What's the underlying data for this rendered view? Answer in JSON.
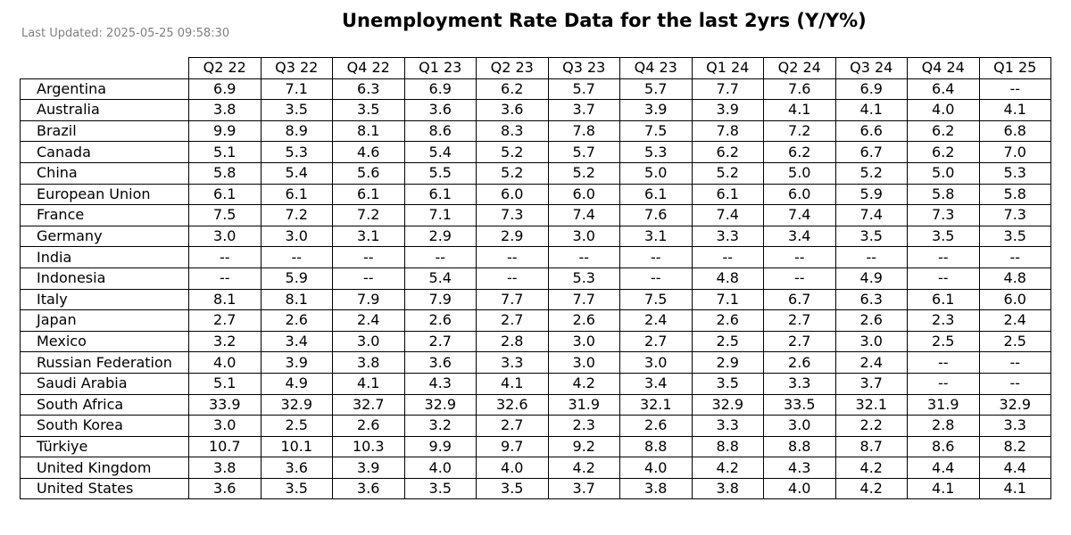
{
  "last_updated": "Last Updated: 2025-05-25 09:58:30",
  "chart_data": {
    "type": "table",
    "title": "Unemployment Rate Data for the last 2yrs (Y/Y%)",
    "columns": [
      "Q2 22",
      "Q3 22",
      "Q4 22",
      "Q1 23",
      "Q2 23",
      "Q3 23",
      "Q4 23",
      "Q1 24",
      "Q2 24",
      "Q3 24",
      "Q4 24",
      "Q1 25"
    ],
    "rows": [
      {
        "country": "Argentina",
        "values": [
          "6.9",
          "7.1",
          "6.3",
          "6.9",
          "6.2",
          "5.7",
          "5.7",
          "7.7",
          "7.6",
          "6.9",
          "6.4",
          "--"
        ]
      },
      {
        "country": "Australia",
        "values": [
          "3.8",
          "3.5",
          "3.5",
          "3.6",
          "3.6",
          "3.7",
          "3.9",
          "3.9",
          "4.1",
          "4.1",
          "4.0",
          "4.1"
        ]
      },
      {
        "country": "Brazil",
        "values": [
          "9.9",
          "8.9",
          "8.1",
          "8.6",
          "8.3",
          "7.8",
          "7.5",
          "7.8",
          "7.2",
          "6.6",
          "6.2",
          "6.8"
        ]
      },
      {
        "country": "Canada",
        "values": [
          "5.1",
          "5.3",
          "4.6",
          "5.4",
          "5.2",
          "5.7",
          "5.3",
          "6.2",
          "6.2",
          "6.7",
          "6.2",
          "7.0"
        ]
      },
      {
        "country": "China",
        "values": [
          "5.8",
          "5.4",
          "5.6",
          "5.5",
          "5.2",
          "5.2",
          "5.0",
          "5.2",
          "5.0",
          "5.2",
          "5.0",
          "5.3"
        ]
      },
      {
        "country": "European Union",
        "values": [
          "6.1",
          "6.1",
          "6.1",
          "6.1",
          "6.0",
          "6.0",
          "6.1",
          "6.1",
          "6.0",
          "5.9",
          "5.8",
          "5.8"
        ]
      },
      {
        "country": "France",
        "values": [
          "7.5",
          "7.2",
          "7.2",
          "7.1",
          "7.3",
          "7.4",
          "7.6",
          "7.4",
          "7.4",
          "7.4",
          "7.3",
          "7.3"
        ]
      },
      {
        "country": "Germany",
        "values": [
          "3.0",
          "3.0",
          "3.1",
          "2.9",
          "2.9",
          "3.0",
          "3.1",
          "3.3",
          "3.4",
          "3.5",
          "3.5",
          "3.5"
        ]
      },
      {
        "country": "India",
        "values": [
          "--",
          "--",
          "--",
          "--",
          "--",
          "--",
          "--",
          "--",
          "--",
          "--",
          "--",
          "--"
        ]
      },
      {
        "country": "Indonesia",
        "values": [
          "--",
          "5.9",
          "--",
          "5.4",
          "--",
          "5.3",
          "--",
          "4.8",
          "--",
          "4.9",
          "--",
          "4.8"
        ]
      },
      {
        "country": "Italy",
        "values": [
          "8.1",
          "8.1",
          "7.9",
          "7.9",
          "7.7",
          "7.7",
          "7.5",
          "7.1",
          "6.7",
          "6.3",
          "6.1",
          "6.0"
        ]
      },
      {
        "country": "Japan",
        "values": [
          "2.7",
          "2.6",
          "2.4",
          "2.6",
          "2.7",
          "2.6",
          "2.4",
          "2.6",
          "2.7",
          "2.6",
          "2.3",
          "2.4"
        ]
      },
      {
        "country": "Mexico",
        "values": [
          "3.2",
          "3.4",
          "3.0",
          "2.7",
          "2.8",
          "3.0",
          "2.7",
          "2.5",
          "2.7",
          "3.0",
          "2.5",
          "2.5"
        ]
      },
      {
        "country": "Russian Federation",
        "values": [
          "4.0",
          "3.9",
          "3.8",
          "3.6",
          "3.3",
          "3.0",
          "3.0",
          "2.9",
          "2.6",
          "2.4",
          "--",
          "--"
        ]
      },
      {
        "country": "Saudi Arabia",
        "values": [
          "5.1",
          "4.9",
          "4.1",
          "4.3",
          "4.1",
          "4.2",
          "3.4",
          "3.5",
          "3.3",
          "3.7",
          "--",
          "--"
        ]
      },
      {
        "country": "South Africa",
        "values": [
          "33.9",
          "32.9",
          "32.7",
          "32.9",
          "32.6",
          "31.9",
          "32.1",
          "32.9",
          "33.5",
          "32.1",
          "31.9",
          "32.9"
        ]
      },
      {
        "country": "South Korea",
        "values": [
          "3.0",
          "2.5",
          "2.6",
          "3.2",
          "2.7",
          "2.3",
          "2.6",
          "3.3",
          "3.0",
          "2.2",
          "2.8",
          "3.3"
        ]
      },
      {
        "country": "Türkiye",
        "values": [
          "10.7",
          "10.1",
          "10.3",
          "9.9",
          "9.7",
          "9.2",
          "8.8",
          "8.8",
          "8.8",
          "8.7",
          "8.6",
          "8.2"
        ]
      },
      {
        "country": "United Kingdom",
        "values": [
          "3.8",
          "3.6",
          "3.9",
          "4.0",
          "4.0",
          "4.2",
          "4.0",
          "4.2",
          "4.3",
          "4.2",
          "4.4",
          "4.4"
        ]
      },
      {
        "country": "United States",
        "values": [
          "3.6",
          "3.5",
          "3.6",
          "3.5",
          "3.5",
          "3.7",
          "3.8",
          "3.8",
          "4.0",
          "4.2",
          "4.1",
          "4.1"
        ]
      }
    ]
  }
}
